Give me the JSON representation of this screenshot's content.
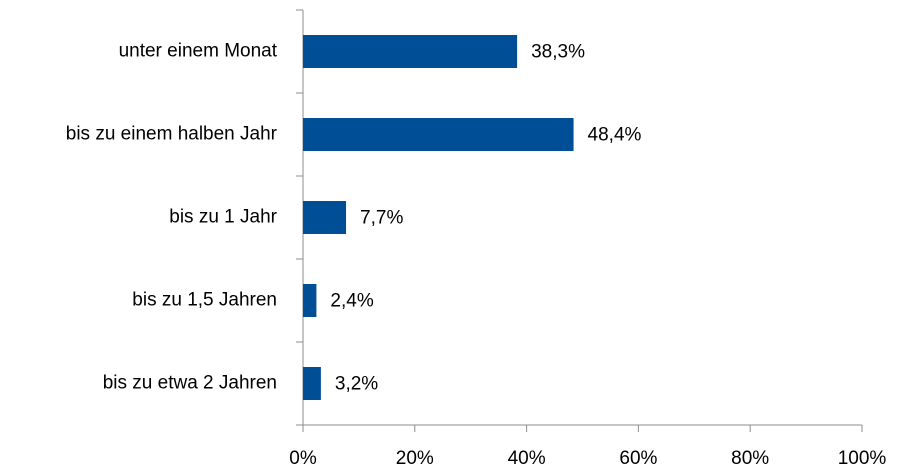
{
  "chart_data": {
    "type": "hbar",
    "categories": [
      "unter einem Monat",
      "bis zu einem halben Jahr",
      "bis zu 1 Jahr",
      "bis zu 1,5 Jahren",
      "bis zu etwa 2 Jahren"
    ],
    "values": [
      38.3,
      48.4,
      7.7,
      2.4,
      3.2
    ],
    "value_labels": [
      "38,3%",
      "48,4%",
      "7,7%",
      "2,4%",
      "3,2%"
    ],
    "color": "#004f96",
    "xlim": [
      0,
      100
    ],
    "xticks": [
      {
        "value": 0,
        "label": "0%"
      },
      {
        "value": 20,
        "label": "20%"
      },
      {
        "value": 40,
        "label": "40%"
      },
      {
        "value": 60,
        "label": "60%"
      },
      {
        "value": 80,
        "label": "80%"
      },
      {
        "value": 100,
        "label": "100%"
      }
    ],
    "grid": false
  }
}
